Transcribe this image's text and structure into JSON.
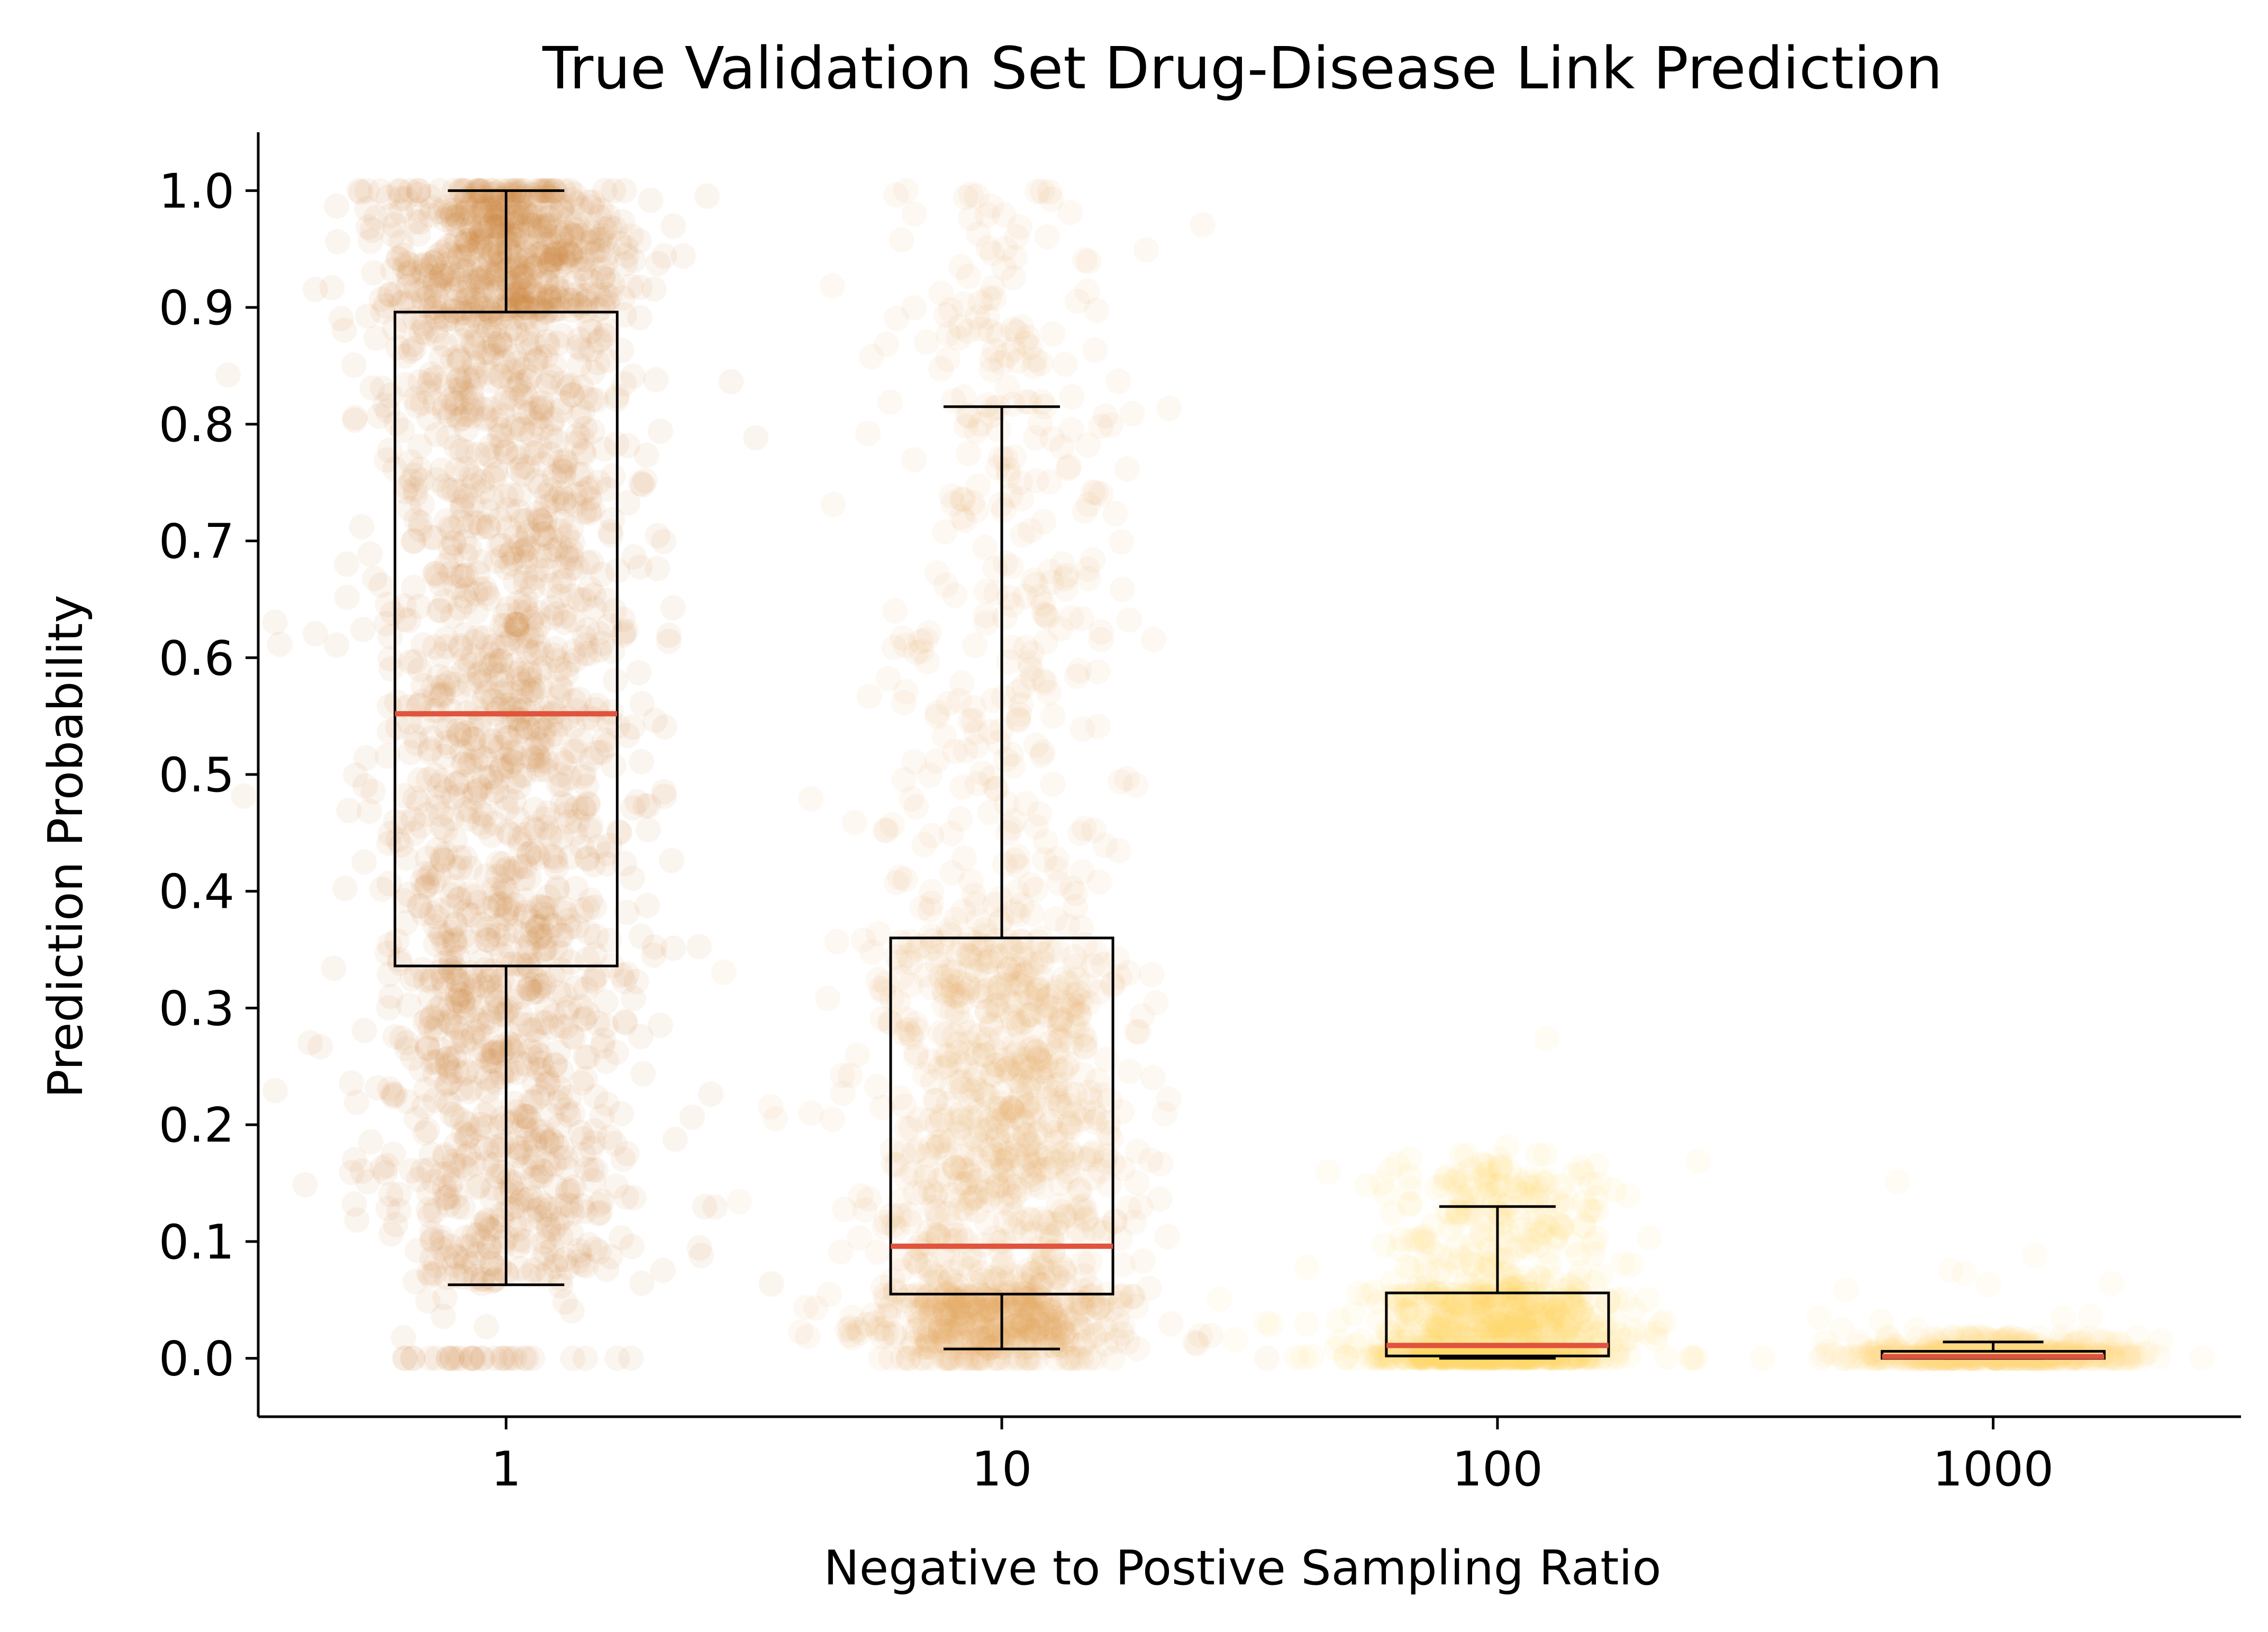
{
  "chart_data": {
    "type": "box",
    "title": "True Validation Set Drug-Disease Link Prediction",
    "xlabel": "Negative to Postive Sampling Ratio",
    "ylabel": "Prediction Probability",
    "x_scale": "log",
    "categories": [
      "1",
      "10",
      "100",
      "1000"
    ],
    "ylim": [
      -0.05,
      1.05
    ],
    "yticks": [
      0.0,
      0.1,
      0.2,
      0.3,
      0.4,
      0.5,
      0.6,
      0.7,
      0.8,
      0.9,
      1.0
    ],
    "ytick_labels": [
      "0.0",
      "0.1",
      "0.2",
      "0.3",
      "0.4",
      "0.5",
      "0.6",
      "0.7",
      "0.8",
      "0.9",
      "1.0"
    ],
    "grid": false,
    "legend": "none",
    "median_color": "#e0533d",
    "boxes": [
      {
        "ratio": 1,
        "color": "#cc7a2d",
        "whisker_low": 0.063,
        "q1": 0.336,
        "median": 0.552,
        "q3": 0.896,
        "whisker_high": 1.0
      },
      {
        "ratio": 10,
        "color": "#e5a957",
        "whisker_low": 0.008,
        "q1": 0.055,
        "median": 0.096,
        "q3": 0.36,
        "whisker_high": 0.815
      },
      {
        "ratio": 100,
        "color": "#ffd56b",
        "whisker_low": 0.0,
        "q1": 0.002,
        "median": 0.011,
        "q3": 0.056,
        "whisker_high": 0.13
      },
      {
        "ratio": 1000,
        "color": "#ffd77a",
        "whisker_low": 0.0,
        "q1": 0.0,
        "median": 0.0015,
        "q3": 0.006,
        "whisker_high": 0.014
      }
    ]
  }
}
